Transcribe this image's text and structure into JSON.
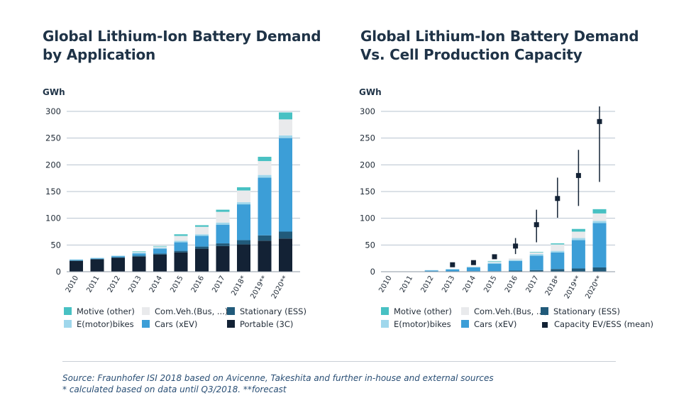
{
  "colors": {
    "motive": "#48c1c3",
    "emotorbikes": "#9fd7ec",
    "comveh": "#e9eaec",
    "cars": "#3c9ed7",
    "stationary": "#215a7a",
    "portable": "#132235",
    "capacity": "#132235",
    "grid": "#b7c3cf",
    "text": "#1f2a36"
  },
  "footer": {
    "source": "Source: Fraunhofer ISI 2018 based on Avicenne, Takeshita and further in-house and external sources",
    "note": "* calculated based on data until Q3/2018. **forecast"
  },
  "chart_data": [
    {
      "type": "bar",
      "title": "Global Lithium-Ion Battery Demand\nby Application",
      "ylabel": "GWh",
      "ylim": [
        0,
        300
      ],
      "yticks": [
        "0",
        "50",
        "100",
        "150",
        "200",
        "250",
        "300"
      ],
      "grid": true,
      "categories": [
        "2010",
        "2011",
        "2012",
        "2013",
        "2014",
        "2015",
        "2016",
        "2017",
        "2018*",
        "2019**",
        "2020**"
      ],
      "series": [
        {
          "name": "Portable (3C)",
          "key": "portable",
          "values": [
            20,
            23,
            26,
            28,
            32,
            36,
            43,
            48,
            51,
            58,
            62
          ]
        },
        {
          "name": "Stationary (ESS)",
          "key": "stationary",
          "values": [
            1,
            1,
            1,
            2,
            2,
            3,
            4,
            5,
            8,
            10,
            13
          ]
        },
        {
          "name": "Cars (xEV)",
          "key": "cars",
          "values": [
            1,
            1,
            2,
            4,
            9,
            16,
            20,
            35,
            67,
            108,
            175
          ]
        },
        {
          "name": "E(motor)bikes",
          "key": "emotorbikes",
          "values": [
            1,
            1,
            1,
            2,
            2,
            3,
            3,
            4,
            4,
            5,
            5
          ]
        },
        {
          "name": "Com.Veh.(Bus, ...)",
          "key": "comveh",
          "values": [
            0,
            0,
            0,
            1,
            2,
            9,
            14,
            20,
            22,
            26,
            30
          ]
        },
        {
          "name": "Motive (other)",
          "key": "motive",
          "values": [
            0,
            0,
            0,
            1,
            1,
            3,
            3,
            4,
            6,
            8,
            13
          ]
        }
      ],
      "legend": [
        {
          "label": "Motive (other)",
          "key": "motive"
        },
        {
          "label": "Com.Veh.(Bus, ...)",
          "key": "comveh"
        },
        {
          "label": "Stationary (ESS)",
          "key": "stationary"
        },
        {
          "label": "E(motor)bikes",
          "key": "emotorbikes"
        },
        {
          "label": "Cars (xEV)",
          "key": "cars"
        },
        {
          "label": "Portable (3C)",
          "key": "portable"
        }
      ]
    },
    {
      "type": "bar",
      "title": "Global Lithium-Ion Battery Demand\nVs. Cell Production Capacity",
      "ylabel": "GWh",
      "ylim": [
        0,
        300
      ],
      "yticks": [
        "0",
        "50",
        "100",
        "150",
        "200",
        "250",
        "300"
      ],
      "grid": true,
      "categories": [
        "2010",
        "2011",
        "2012",
        "2013",
        "2014",
        "2015",
        "2016",
        "2017",
        "2018*",
        "2019**",
        "2020**"
      ],
      "series": [
        {
          "name": "Stationary (ESS)",
          "key": "stationary",
          "values": [
            0,
            0,
            0,
            0,
            1,
            1,
            2,
            3,
            5,
            6,
            8
          ]
        },
        {
          "name": "Cars (xEV)",
          "key": "cars",
          "values": [
            0,
            0,
            2,
            4,
            7,
            14,
            18,
            27,
            31,
            53,
            83
          ]
        },
        {
          "name": "E(motor)bikes",
          "key": "emotorbikes",
          "values": [
            0,
            0,
            1,
            1,
            1,
            2,
            2,
            3,
            3,
            4,
            4
          ]
        },
        {
          "name": "Com.Veh.(Bus, ...)",
          "key": "comveh",
          "values": [
            0,
            0,
            0,
            0,
            1,
            2,
            3,
            3,
            12,
            12,
            14
          ]
        },
        {
          "name": "Motive (other)",
          "key": "motive",
          "values": [
            0,
            0,
            0,
            0,
            0,
            1,
            0,
            1,
            2,
            5,
            8
          ]
        }
      ],
      "capacity": {
        "name": "Capacity EV/ESS (mean)",
        "mean": [
          null,
          null,
          null,
          13,
          17,
          28,
          48,
          88,
          137,
          180,
          281
        ],
        "low": [
          null,
          null,
          null,
          null,
          null,
          null,
          33,
          55,
          101,
          123,
          168
        ],
        "high": [
          null,
          null,
          null,
          null,
          null,
          null,
          63,
          116,
          176,
          228,
          310
        ]
      },
      "legend": [
        {
          "label": "Motive (other)",
          "key": "motive"
        },
        {
          "label": "Com.Veh.(Bus, ...)",
          "key": "comveh"
        },
        {
          "label": "Stationary (ESS)",
          "key": "stationary"
        },
        {
          "label": "E(motor)bikes",
          "key": "emotorbikes"
        },
        {
          "label": "Cars (xEV)",
          "key": "cars"
        },
        {
          "label": "Capacity EV/ESS (mean)",
          "key": "capacity"
        }
      ]
    }
  ]
}
